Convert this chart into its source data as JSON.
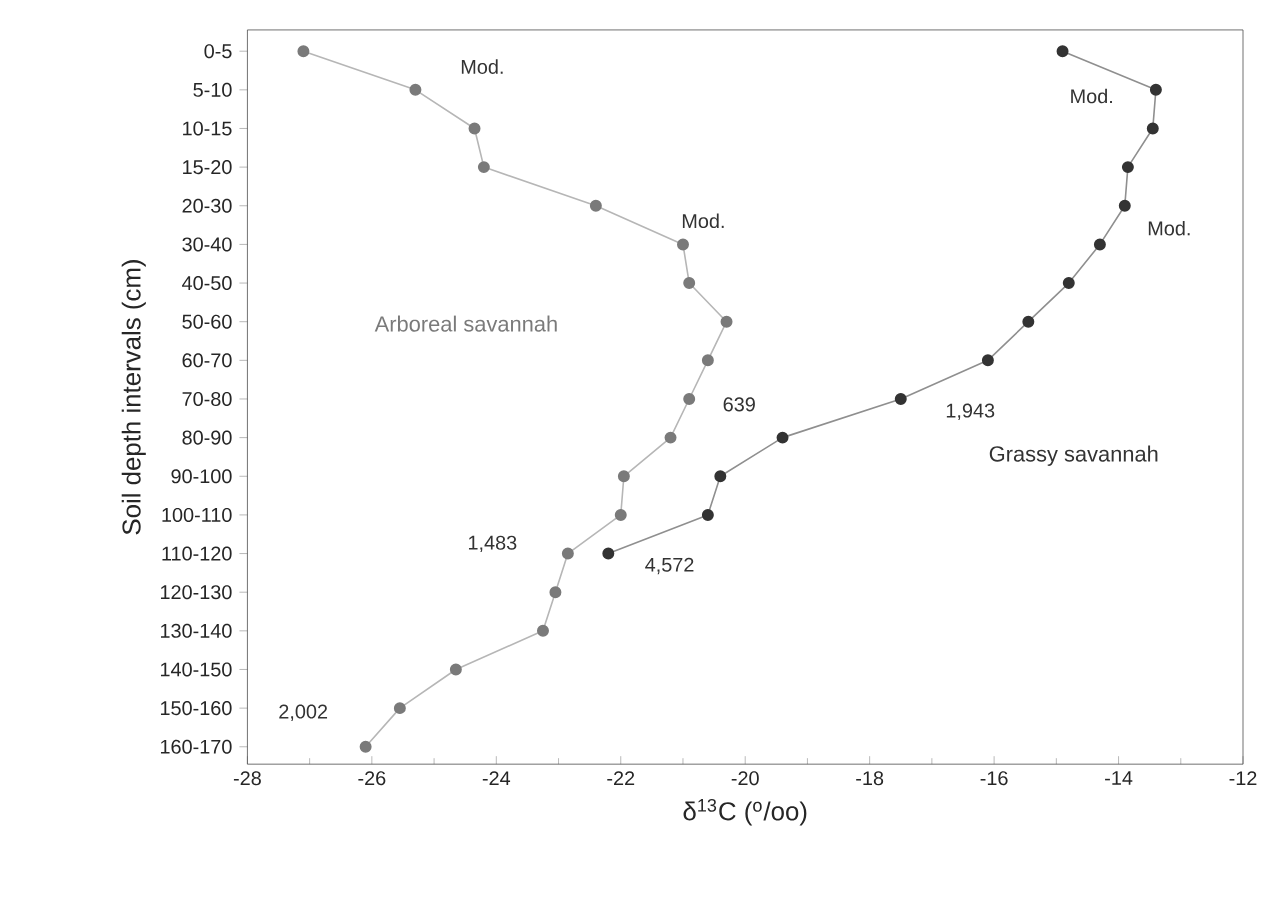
{
  "chart_data": {
    "type": "line",
    "orientation": "horizontal",
    "xlabel": "δ$^{13}$C ($^{o}$/oo)",
    "ylabel": "Soil depth intervals (cm)",
    "categories": [
      "0-5",
      "5-10",
      "10-15",
      "15-20",
      "20-30",
      "30-40",
      "40-50",
      "50-60",
      "60-70",
      "70-80",
      "80-90",
      "90-100",
      "100-110",
      "110-120",
      "120-130",
      "130-140",
      "140-150",
      "150-160",
      "160-170"
    ],
    "series": [
      {
        "name": "Arboreal savannah",
        "color": "#7a7a7a",
        "values": [
          -27.1,
          -25.3,
          -24.35,
          -24.2,
          -22.4,
          -21.0,
          -20.9,
          -20.3,
          -20.6,
          -20.9,
          -21.2,
          -21.95,
          -22.0,
          -22.85,
          -23.05,
          -23.25,
          -24.65,
          -25.55,
          -26.1
        ]
      },
      {
        "name": "Grassy savannah",
        "color": "#333333",
        "values": [
          -14.9,
          -13.4,
          -13.45,
          -13.85,
          -13.9,
          -14.3,
          -14.8,
          -15.45,
          -16.1,
          -17.5,
          -19.4,
          -20.4,
          -20.6,
          -22.2,
          null,
          null,
          null,
          null,
          null
        ]
      }
    ],
    "xlim": [
      -28,
      -12
    ],
    "xticks": [
      -28,
      -26,
      -24,
      -22,
      -20,
      -18,
      -16,
      -14,
      -12
    ],
    "grid": false,
    "legend": false,
    "marker": "circle",
    "annotations": [
      "Mod.",
      "Mod.",
      "639",
      "1,483",
      "2,002",
      "Mod.",
      "Mod.",
      "1,943",
      "4,572"
    ]
  }
}
